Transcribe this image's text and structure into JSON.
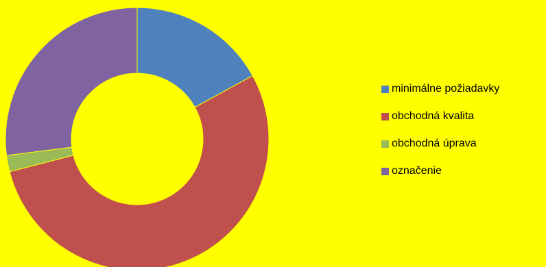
{
  "chart_data": {
    "type": "donut",
    "series": [
      {
        "name": "minimálne požiadavky",
        "value": 17,
        "color": "#4f81bd"
      },
      {
        "name": "obchodná kvalita",
        "value": 54,
        "color": "#c0504d"
      },
      {
        "name": "obchodná úprava",
        "value": 2,
        "color": "#9bbb59"
      },
      {
        "name": "označenie",
        "value": 27,
        "color": "#8064a2"
      }
    ],
    "legend_position": "right",
    "background": "#ffff00"
  }
}
